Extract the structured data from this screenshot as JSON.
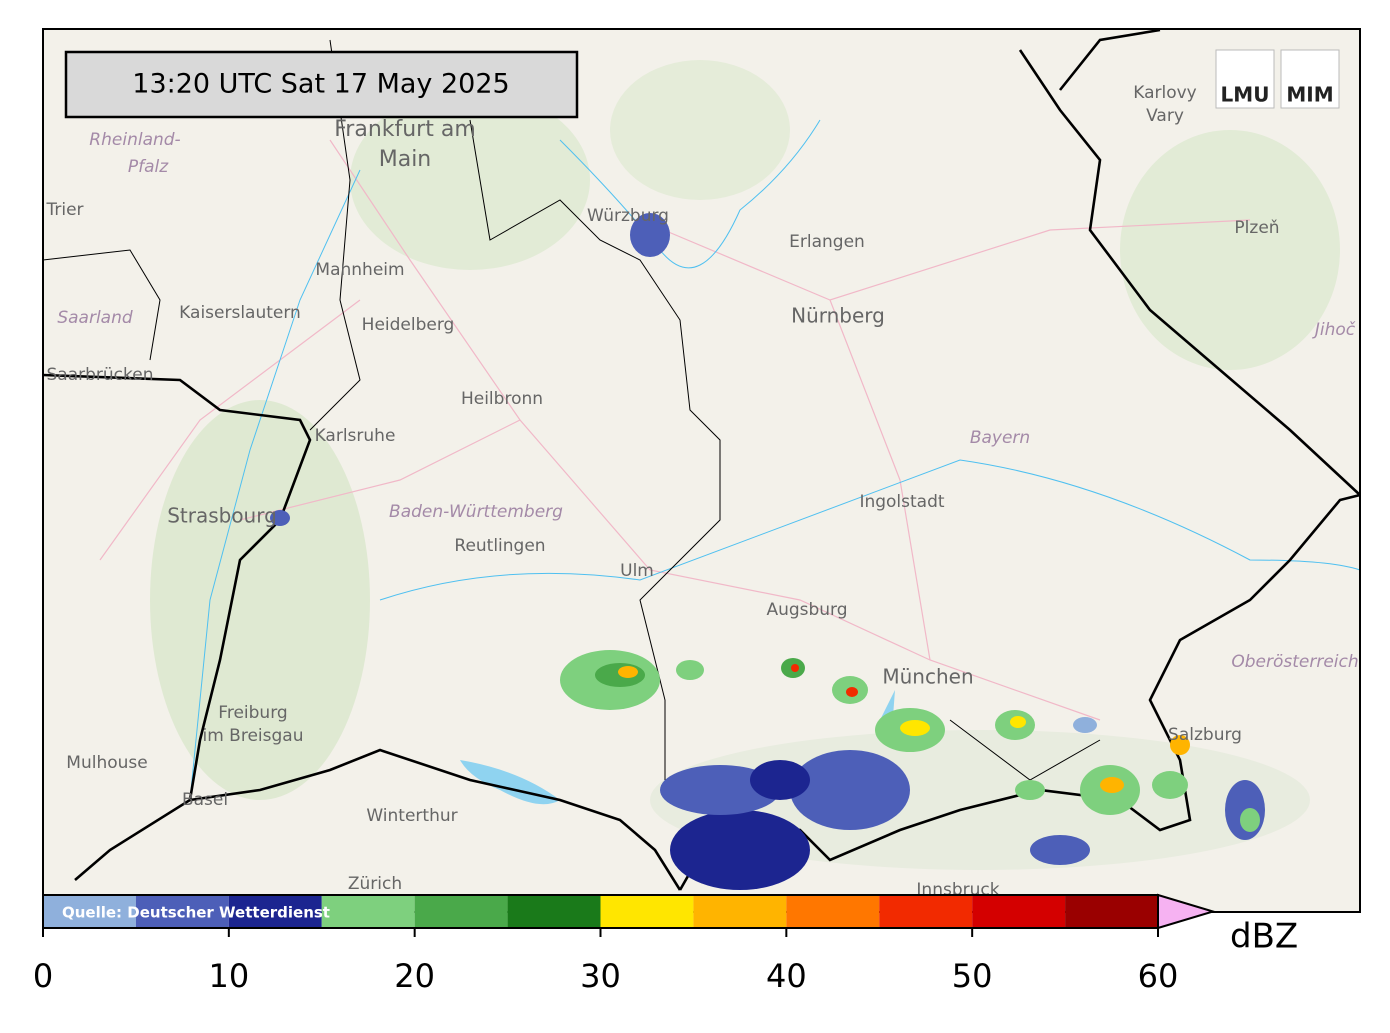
{
  "header": {
    "timestamp": "13:20 UTC  Sat 17 May 2025"
  },
  "logos": [
    "LMU",
    "MIM"
  ],
  "map": {
    "labels": [
      "Frankfurt am",
      "Main",
      "Rheinland-",
      "Pfalz",
      "Trier",
      "Mannheim",
      "Kaiserslautern",
      "Heidelberg",
      "Saarland",
      "Saarbrücken",
      "Heilbronn",
      "Karlsruhe",
      "Strasbourg",
      "Baden-Württemberg",
      "Reutlingen",
      "Ulm",
      "Augsburg",
      "München",
      "Ingolstadt",
      "Nürnberg",
      "Erlangen",
      "Würzburg",
      "Bayern",
      "Karlovy",
      "Vary",
      "Plzeň",
      "Jihoč",
      "Oberösterreich",
      "Salzburg",
      "Freiburg",
      "im Breisgau",
      "Mulhouse",
      "Basel",
      "Winterthur",
      "Zürich",
      "Innsbruck"
    ]
  },
  "colorbar": {
    "source": "Quelle: Deutscher Wetterdienst",
    "levels": [
      0,
      5,
      10,
      15,
      20,
      25,
      30,
      35,
      40,
      45,
      50,
      55,
      60
    ],
    "colors": [
      "#8fb0dc",
      "#4d5fb8",
      "#1c2590",
      "#7ed07e",
      "#4aa94a",
      "#1a7a1a",
      "#ffe600",
      "#ffb400",
      "#ff7700",
      "#f22a00",
      "#d40000",
      "#9a0000"
    ],
    "extend_color": "#f6b2f2",
    "ticks": [
      0,
      10,
      20,
      30,
      40,
      50,
      60
    ],
    "unit": "dBZ"
  }
}
